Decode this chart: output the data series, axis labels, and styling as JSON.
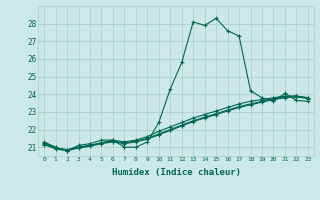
{
  "xlabel": "Humidex (Indice chaleur)",
  "ylabel": "",
  "bg_color": "#cce8e8",
  "grid_color": "#aacccc",
  "line_color": "#006655",
  "xlim": [
    -0.5,
    23.5
  ],
  "ylim": [
    20.5,
    29.0
  ],
  "yticks": [
    21,
    22,
    23,
    24,
    25,
    26,
    27,
    28
  ],
  "xticks": [
    0,
    1,
    2,
    3,
    4,
    5,
    6,
    7,
    8,
    9,
    10,
    11,
    12,
    13,
    14,
    15,
    16,
    17,
    18,
    19,
    20,
    21,
    22,
    23
  ],
  "line1_x": [
    0,
    1,
    2,
    3,
    4,
    5,
    6,
    7,
    8,
    9,
    10,
    11,
    12,
    13,
    14,
    15,
    16,
    17,
    18,
    19,
    20,
    21,
    22,
    23
  ],
  "line1_y": [
    21.3,
    21.0,
    20.8,
    21.1,
    21.2,
    21.4,
    21.4,
    21.0,
    21.0,
    21.3,
    22.4,
    24.3,
    25.8,
    28.1,
    27.9,
    28.3,
    27.6,
    27.3,
    24.2,
    23.8,
    23.6,
    24.05,
    23.65,
    23.6
  ],
  "line2_x": [
    0,
    1,
    2,
    3,
    4,
    5,
    6,
    7,
    8,
    9,
    10,
    11,
    12,
    13,
    14,
    15,
    16,
    17,
    18,
    19,
    20,
    21,
    22,
    23
  ],
  "line2_y": [
    21.2,
    20.95,
    20.85,
    21.0,
    21.1,
    21.25,
    21.35,
    21.25,
    21.35,
    21.5,
    21.75,
    22.0,
    22.25,
    22.5,
    22.7,
    22.9,
    23.1,
    23.3,
    23.45,
    23.6,
    23.75,
    23.85,
    23.9,
    23.8
  ],
  "line3_x": [
    0,
    1,
    2,
    3,
    4,
    5,
    6,
    7,
    8,
    9,
    10,
    11,
    12,
    13,
    14,
    15,
    16,
    17,
    18,
    19,
    20,
    21,
    22,
    23
  ],
  "line3_y": [
    21.15,
    20.9,
    20.8,
    20.95,
    21.05,
    21.2,
    21.3,
    21.2,
    21.3,
    21.45,
    21.7,
    21.95,
    22.2,
    22.45,
    22.65,
    22.85,
    23.05,
    23.25,
    23.4,
    23.55,
    23.7,
    23.8,
    23.85,
    23.75
  ],
  "line4_x": [
    0,
    1,
    2,
    3,
    4,
    5,
    6,
    7,
    8,
    9,
    10,
    11,
    12,
    13,
    14,
    15,
    16,
    17,
    18,
    19,
    20,
    21,
    22,
    23
  ],
  "line4_y": [
    21.25,
    20.95,
    20.85,
    21.0,
    21.1,
    21.25,
    21.4,
    21.3,
    21.4,
    21.6,
    21.9,
    22.15,
    22.4,
    22.65,
    22.85,
    23.05,
    23.25,
    23.45,
    23.6,
    23.7,
    23.8,
    23.9,
    23.9,
    23.8
  ]
}
